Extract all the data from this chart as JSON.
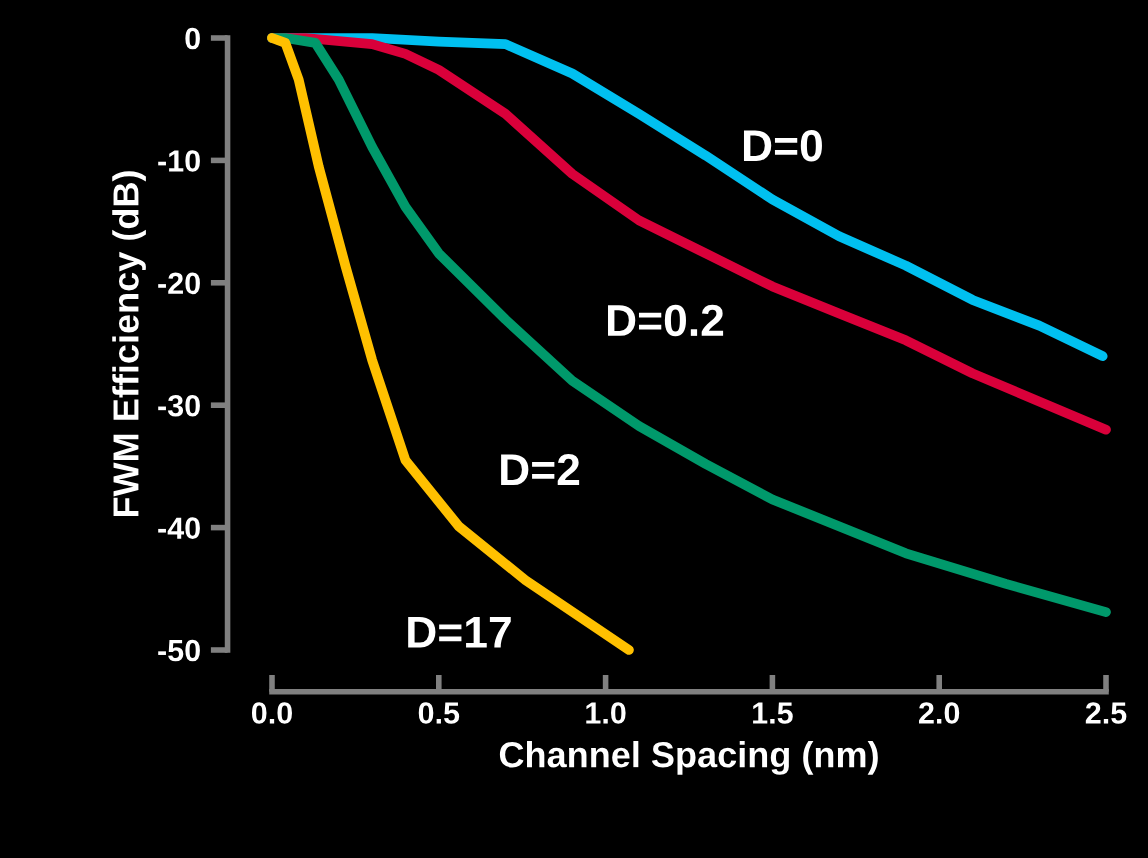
{
  "chart_data": {
    "type": "line",
    "xlabel": "Channel Spacing (nm)",
    "ylabel": "FWM Efficiency (dB)",
    "xlim": [
      0,
      2.5
    ],
    "ylim": [
      -50,
      0
    ],
    "xticks": [
      {
        "value": 0,
        "label": "0.0"
      },
      0.5,
      {
        "value": 1,
        "label": "1.0"
      },
      1.5,
      {
        "value": 2,
        "label": "2.0"
      },
      2.5
    ],
    "yticks": [
      -50,
      -40,
      -30,
      -20,
      -10,
      0
    ],
    "grid": false,
    "legend": false,
    "marker": "none",
    "line_style": "solid",
    "series": [
      {
        "name": "D=0",
        "color": "#00c0f0",
        "x": [
          0,
          0.3,
          0.5,
          0.7,
          0.9,
          1.1,
          1.3,
          1.5,
          1.7,
          1.9,
          2.1,
          2.3,
          2.49
        ],
        "values": [
          0,
          0,
          -0.3,
          -0.5,
          -2.9,
          -6.2,
          -9.6,
          -13.2,
          -16.2,
          -18.6,
          -21.4,
          -23.5,
          -26
        ]
      },
      {
        "name": "D=0.2",
        "color": "#d9003a",
        "x": [
          0,
          0.1,
          0.3,
          0.4,
          0.5,
          0.7,
          0.9,
          1.1,
          1.3,
          1.5,
          1.7,
          1.9,
          2.1,
          2.5
        ],
        "values": [
          0,
          0,
          -0.5,
          -1.3,
          -2.6,
          -6.2,
          -11.1,
          -14.9,
          -17.6,
          -20.3,
          -22.5,
          -24.7,
          -27.4,
          -32
        ]
      },
      {
        "name": "D=2",
        "color": "#00996b",
        "x": [
          0,
          0.04,
          0.13,
          0.2,
          0.3,
          0.4,
          0.5,
          0.7,
          0.9,
          1.1,
          1.3,
          1.5,
          1.9,
          2.2,
          2.5
        ],
        "values": [
          0,
          0,
          -0.4,
          -3.4,
          -8.9,
          -13.8,
          -17.6,
          -23,
          -28,
          -31.7,
          -34.8,
          -37.7,
          -42.1,
          -44.6,
          -46.9
        ]
      },
      {
        "name": "D=17",
        "color": "#ffc000",
        "x": [
          0,
          0.04,
          0.08,
          0.14,
          0.22,
          0.3,
          0.4,
          0.56,
          0.76,
          1.07
        ],
        "values": [
          0,
          -0.4,
          -3.4,
          -10.5,
          -18.6,
          -26.3,
          -34.5,
          -39.9,
          -44.3,
          -50
        ]
      }
    ]
  }
}
